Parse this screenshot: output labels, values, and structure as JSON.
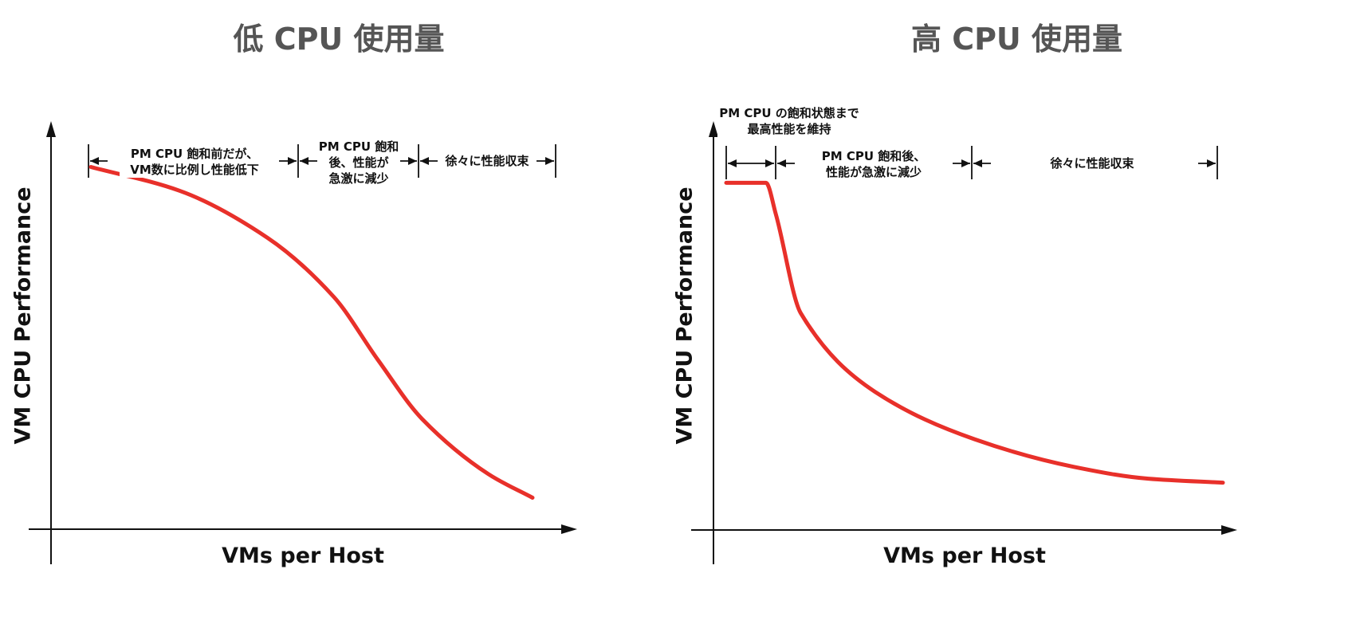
{
  "chart_data": [
    {
      "type": "line",
      "title": "低 CPU 使用量",
      "xlabel": "VMs per Host",
      "ylabel": "VM CPU Performance",
      "grid": false,
      "annotations": [
        {
          "line1": "PM CPU 飽和前だが、",
          "line2": "VM数に比例し性能低下"
        },
        {
          "line1": "PM CPU 飽和",
          "line2": "後、性能が",
          "line3": "急激に減少"
        },
        {
          "line1": "徐々に性能収束"
        }
      ],
      "series": [
        {
          "color": "#e8302a",
          "x": [
            0.0,
            0.2,
            0.4,
            0.55,
            0.65,
            0.75,
            0.9,
            1.0
          ],
          "y": [
            0.92,
            0.86,
            0.74,
            0.59,
            0.43,
            0.28,
            0.14,
            0.08
          ]
        }
      ]
    },
    {
      "type": "line",
      "title": "高 CPU 使用量",
      "xlabel": "VMs per Host",
      "ylabel": "VM CPU Performance",
      "grid": false,
      "annotations": [
        {
          "line1": "PM CPU の飽和状態まで",
          "line2": "最高性能を維持"
        },
        {
          "line1": "PM CPU 飽和後、",
          "line2": "性能が急激に減少"
        },
        {
          "line1": "徐々に性能収束"
        }
      ],
      "series": [
        {
          "color": "#e8302a",
          "x": [
            0.0,
            0.08,
            0.1,
            0.15,
            0.3,
            0.5,
            0.7,
            0.85,
            1.0
          ],
          "y": [
            0.88,
            0.88,
            0.8,
            0.55,
            0.35,
            0.23,
            0.16,
            0.13,
            0.12
          ]
        }
      ]
    }
  ]
}
